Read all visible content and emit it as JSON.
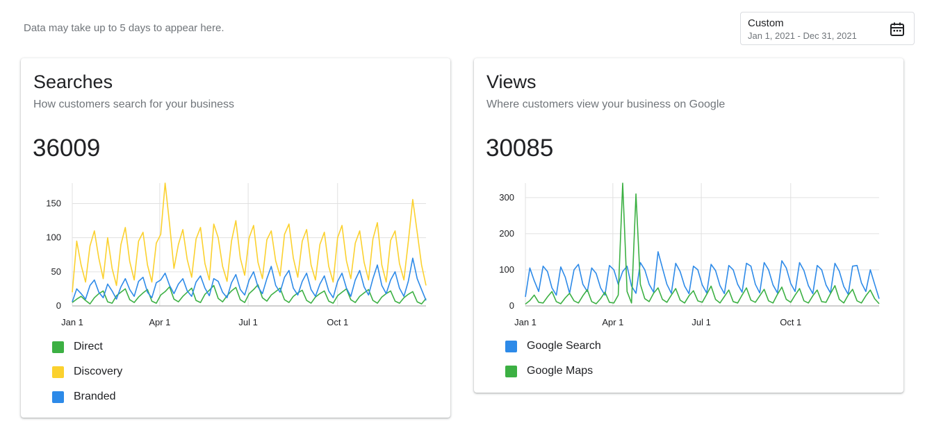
{
  "notice": "Data may take up to 5 days to appear here.",
  "date_picker": {
    "label": "Custom",
    "range": "Jan 1, 2021 - Dec 31, 2021",
    "icon": "calendar-icon"
  },
  "searches": {
    "title": "Searches",
    "subtitle": "How customers search for your business",
    "total": "36009",
    "legend": [
      {
        "label": "Direct",
        "color": "#3cb043"
      },
      {
        "label": "Discovery",
        "color": "#fbd12e"
      },
      {
        "label": "Branded",
        "color": "#2d8ae8"
      }
    ]
  },
  "views": {
    "title": "Views",
    "subtitle": "Where customers view your business on Google",
    "total": "30085",
    "legend": [
      {
        "label": "Google Search",
        "color": "#2d8ae8"
      },
      {
        "label": "Google Maps",
        "color": "#3cb043"
      }
    ]
  },
  "chart_data": [
    {
      "type": "line",
      "title": "Searches",
      "x_ticks": [
        "Jan 1",
        "Apr 1",
        "Jul 1",
        "Oct 1"
      ],
      "y_ticks": [
        "0",
        "50",
        "100",
        "150"
      ],
      "ylim": [
        0,
        180
      ],
      "xlim": [
        "2021-01-01",
        "2021-12-31"
      ],
      "grid": true,
      "legend_position": "bottom-left",
      "series": [
        {
          "name": "Direct",
          "color": "#3cb043",
          "values": [
            5,
            10,
            14,
            8,
            3,
            12,
            18,
            22,
            6,
            4,
            15,
            20,
            25,
            9,
            5,
            13,
            19,
            24,
            7,
            4,
            16,
            21,
            28,
            10,
            6,
            14,
            20,
            26,
            8,
            5,
            17,
            23,
            30,
            11,
            6,
            15,
            22,
            27,
            9,
            5,
            18,
            24,
            31,
            12,
            7,
            16,
            21,
            26,
            9,
            5,
            14,
            19,
            23,
            8,
            4,
            13,
            18,
            22,
            7,
            4,
            15,
            20,
            25,
            9,
            5,
            14,
            19,
            24,
            8,
            4,
            13,
            18,
            22,
            7,
            4,
            12,
            17,
            21,
            6,
            3,
            11
          ]
        },
        {
          "name": "Discovery",
          "color": "#fbd12e",
          "values": [
            20,
            95,
            60,
            35,
            88,
            110,
            70,
            40,
            100,
            55,
            30,
            90,
            115,
            65,
            38,
            95,
            108,
            60,
            35,
            92,
            105,
            185,
            120,
            55,
            90,
            112,
            68,
            42,
            98,
            115,
            62,
            38,
            120,
            100,
            58,
            36,
            95,
            125,
            70,
            45,
            100,
            118,
            64,
            40,
            97,
            110,
            66,
            44,
            105,
            120,
            70,
            42,
            95,
            112,
            60,
            38,
            90,
            108,
            58,
            35,
            100,
            118,
            66,
            40,
            92,
            110,
            64,
            38,
            98,
            122,
            60,
            35,
            96,
            110,
            62,
            38,
            94,
            156,
            108,
            60,
            30
          ]
        },
        {
          "name": "Branded",
          "color": "#2d8ae8",
          "values": [
            6,
            25,
            18,
            10,
            30,
            38,
            20,
            12,
            32,
            22,
            10,
            28,
            40,
            24,
            14,
            36,
            42,
            20,
            12,
            34,
            38,
            48,
            30,
            18,
            32,
            40,
            22,
            14,
            35,
            44,
            26,
            15,
            40,
            36,
            20,
            12,
            34,
            46,
            24,
            16,
            38,
            50,
            28,
            18,
            40,
            58,
            30,
            20,
            42,
            52,
            26,
            16,
            36,
            48,
            24,
            14,
            32,
            44,
            22,
            12,
            36,
            48,
            26,
            14,
            38,
            52,
            28,
            16,
            40,
            60,
            30,
            18,
            38,
            50,
            26,
            14,
            36,
            70,
            40,
            24,
            8
          ]
        }
      ]
    },
    {
      "type": "line",
      "title": "Views",
      "x_ticks": [
        "Jan 1",
        "Apr 1",
        "Jul 1",
        "Oct 1"
      ],
      "y_ticks": [
        "0",
        "100",
        "200",
        "300"
      ],
      "ylim": [
        0,
        340
      ],
      "xlim": [
        "2021-01-01",
        "2021-12-31"
      ],
      "grid": true,
      "legend_position": "bottom-left",
      "series": [
        {
          "name": "Google Search",
          "color": "#2d8ae8",
          "values": [
            25,
            105,
            70,
            40,
            110,
            95,
            50,
            30,
            108,
            80,
            35,
            100,
            115,
            60,
            40,
            105,
            90,
            50,
            30,
            112,
            100,
            60,
            95,
            110,
            55,
            35,
            120,
            100,
            60,
            38,
            150,
            105,
            60,
            35,
            118,
            95,
            55,
            34,
            110,
            100,
            58,
            36,
            115,
            98,
            56,
            34,
            112,
            100,
            60,
            38,
            118,
            110,
            60,
            36,
            120,
            100,
            58,
            36,
            125,
            105,
            62,
            40,
            120,
            98,
            56,
            34,
            112,
            100,
            58,
            36,
            118,
            96,
            54,
            32,
            110,
            112,
            64,
            40,
            100,
            60,
            20
          ]
        },
        {
          "name": "Google Maps",
          "color": "#3cb043",
          "values": [
            5,
            15,
            30,
            10,
            8,
            25,
            40,
            12,
            6,
            22,
            35,
            14,
            8,
            28,
            45,
            12,
            6,
            20,
            38,
            10,
            8,
            30,
            340,
            40,
            8,
            310,
            60,
            20,
            12,
            35,
            50,
            18,
            10,
            30,
            48,
            16,
            8,
            28,
            42,
            14,
            10,
            32,
            55,
            18,
            8,
            26,
            44,
            12,
            8,
            30,
            50,
            16,
            10,
            28,
            46,
            14,
            8,
            32,
            52,
            18,
            10,
            30,
            48,
            14,
            8,
            28,
            44,
            12,
            10,
            34,
            56,
            18,
            8,
            30,
            46,
            14,
            8,
            28,
            44,
            20,
            6
          ]
        }
      ]
    }
  ]
}
